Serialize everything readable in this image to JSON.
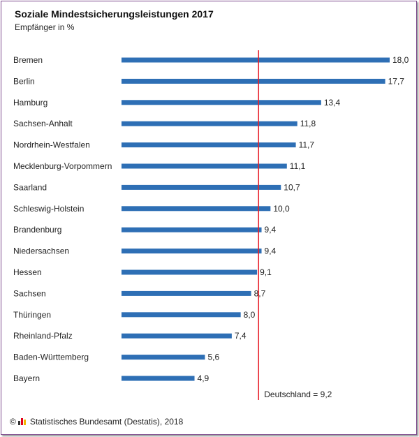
{
  "header": {
    "title": "Soziale Mindestsicherungsleistungen 2017",
    "subtitle": "Empfänger in %"
  },
  "footer": {
    "copyright": "©",
    "source": "Statistisches Bundesamt (Destatis), 2018"
  },
  "colors": {
    "bar": "#2e6fb5",
    "reference_line": "#e8202a",
    "text": "#222222",
    "logo_1": "#333333",
    "logo_2": "#e2001a",
    "logo_3": "#f3b800"
  },
  "chart_data": {
    "type": "bar",
    "orientation": "horizontal",
    "title": "Soziale Mindestsicherungsleistungen 2017",
    "subtitle": "Empfänger in %",
    "categories": [
      "Bremen",
      "Berlin",
      "Hamburg",
      "Sachsen-Anhalt",
      "Nordrhein-Westfalen",
      "Mecklenburg-Vorpommern",
      "Saarland",
      "Schleswig-Holstein",
      "Brandenburg",
      "Niedersachsen",
      "Hessen",
      "Sachsen",
      "Thüringen",
      "Rheinland-Pfalz",
      "Baden-Württemberg",
      "Bayern"
    ],
    "values": [
      18.0,
      17.7,
      13.4,
      11.8,
      11.7,
      11.1,
      10.7,
      10.0,
      9.4,
      9.4,
      9.1,
      8.7,
      8.0,
      7.4,
      5.6,
      4.9
    ],
    "value_labels": [
      "18,0",
      "17,7",
      "13,4",
      "11,8",
      "11,7",
      "11,1",
      "10,7",
      "10,0",
      "9,4",
      "9,4",
      "9,1",
      "8,7",
      "8,0",
      "7,4",
      "5,6",
      "4,9"
    ],
    "reference": {
      "value": 9.2,
      "label": "Deutschland = 9,2"
    },
    "xlim": [
      0,
      18.0
    ],
    "grid": false,
    "legend": "none"
  }
}
